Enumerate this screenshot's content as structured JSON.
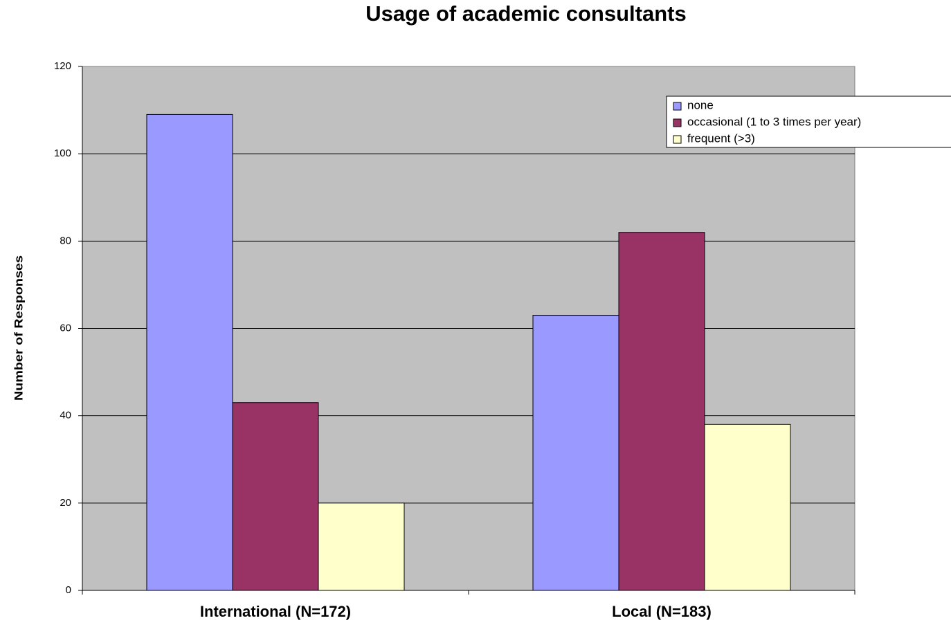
{
  "chart_data": {
    "type": "bar",
    "title": "Usage of academic consultants",
    "y_label": "Number of Responses",
    "categories": [
      "International (N=172)",
      "Local (N=183)"
    ],
    "series": [
      {
        "name": "none",
        "color": "#9999ff",
        "values": [
          109,
          63
        ]
      },
      {
        "name": "occasional (1 to 3 times per year)",
        "color": "#993366",
        "values": [
          43,
          82
        ]
      },
      {
        "name": "frequent (>3)",
        "color": "#ffffcc",
        "values": [
          20,
          38
        ]
      }
    ],
    "ylim": [
      0,
      120
    ],
    "yticks": [
      0,
      20,
      40,
      60,
      80,
      100,
      120
    ],
    "grid": true,
    "legend": "top-right"
  }
}
